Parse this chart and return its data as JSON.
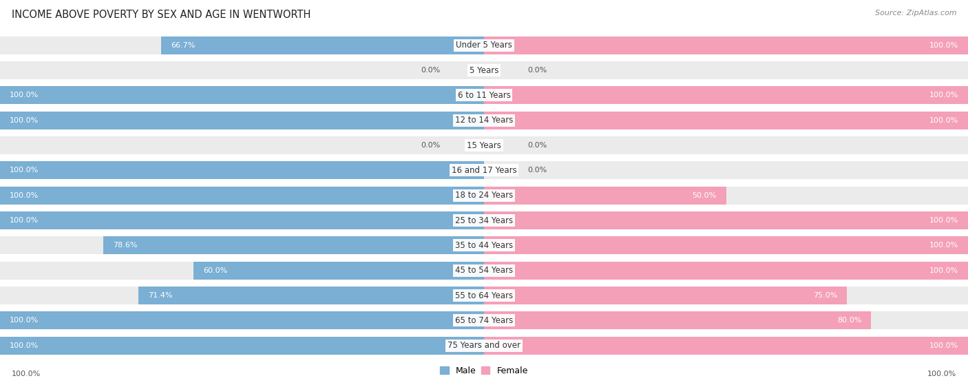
{
  "title": "INCOME ABOVE POVERTY BY SEX AND AGE IN WENTWORTH",
  "source": "Source: ZipAtlas.com",
  "categories": [
    "Under 5 Years",
    "5 Years",
    "6 to 11 Years",
    "12 to 14 Years",
    "15 Years",
    "16 and 17 Years",
    "18 to 24 Years",
    "25 to 34 Years",
    "35 to 44 Years",
    "45 to 54 Years",
    "55 to 64 Years",
    "65 to 74 Years",
    "75 Years and over"
  ],
  "male": [
    66.7,
    0.0,
    100.0,
    100.0,
    0.0,
    100.0,
    100.0,
    100.0,
    78.6,
    60.0,
    71.4,
    100.0,
    100.0
  ],
  "female": [
    100.0,
    0.0,
    100.0,
    100.0,
    0.0,
    0.0,
    50.0,
    100.0,
    100.0,
    100.0,
    75.0,
    80.0,
    100.0
  ],
  "male_color": "#7bafd4",
  "female_color": "#f4a0b8",
  "row_bg_color": "#ebebeb",
  "title_fontsize": 10.5,
  "label_fontsize": 8.5,
  "value_fontsize": 8.0
}
